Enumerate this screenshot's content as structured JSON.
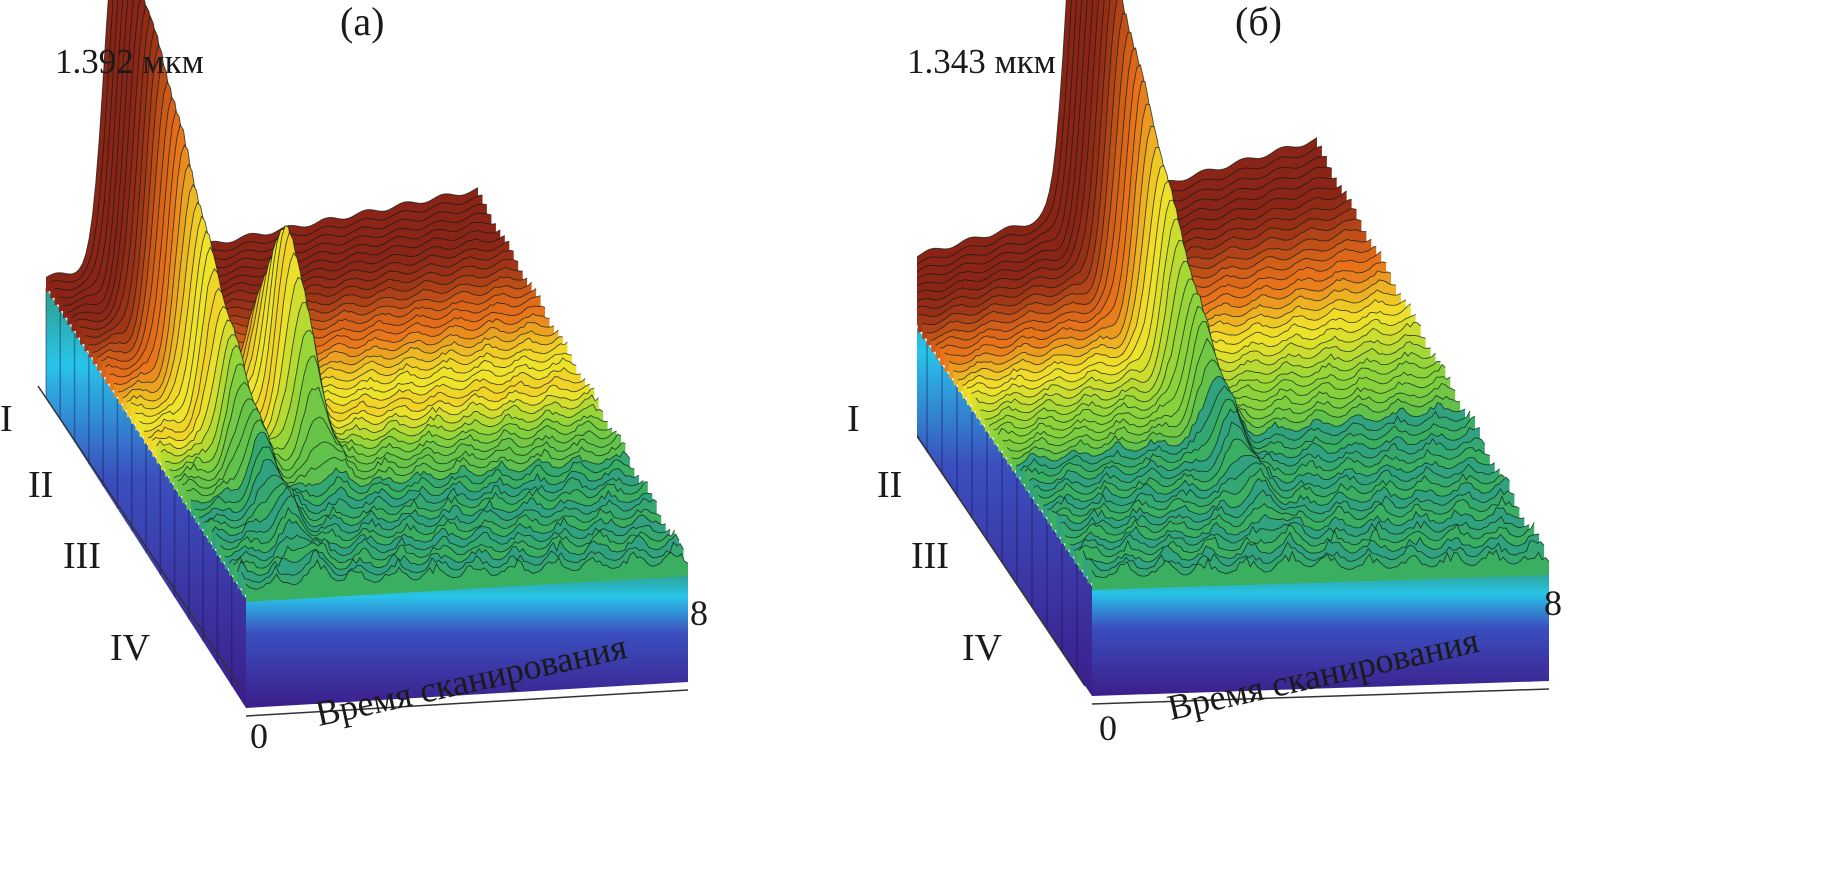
{
  "chart_data": [
    {
      "type": "surface3d",
      "panel_label": "(а)",
      "wavelength_label": "1.392 мкм",
      "xlabel": "Время сканирования",
      "x_ticks": [
        "0",
        "8"
      ],
      "xlim": [
        0,
        8
      ],
      "regions": [
        "I",
        "II",
        "III",
        "IV"
      ],
      "peaks": [
        {
          "x": 1.3,
          "relative_height": 1.0,
          "region": "I-IV"
        },
        {
          "x": 2.6,
          "relative_height": 0.55,
          "region": "III-IV"
        }
      ],
      "colormap": [
        "#3b1e8a",
        "#3b4fbf",
        "#28c4e8",
        "#2e9e8a",
        "#3cb25a",
        "#8fd43a",
        "#f2e22a",
        "#e8701a",
        "#8a2416"
      ]
    },
    {
      "type": "surface3d",
      "panel_label": "(б)",
      "wavelength_label": "1.343 мкм",
      "xlabel": "Время сканирования",
      "x_ticks": [
        "0",
        "8"
      ],
      "xlim": [
        0,
        8
      ],
      "regions": [
        "I",
        "II",
        "III",
        "IV"
      ],
      "peaks": [
        {
          "x": 3.6,
          "relative_height": 1.0,
          "region": "I-II"
        }
      ],
      "colormap": [
        "#3b1e8a",
        "#3b4fbf",
        "#28c4e8",
        "#2e9e8a",
        "#3cb25a",
        "#8fd43a",
        "#f2e22a",
        "#e8701a",
        "#8a2416"
      ]
    }
  ]
}
